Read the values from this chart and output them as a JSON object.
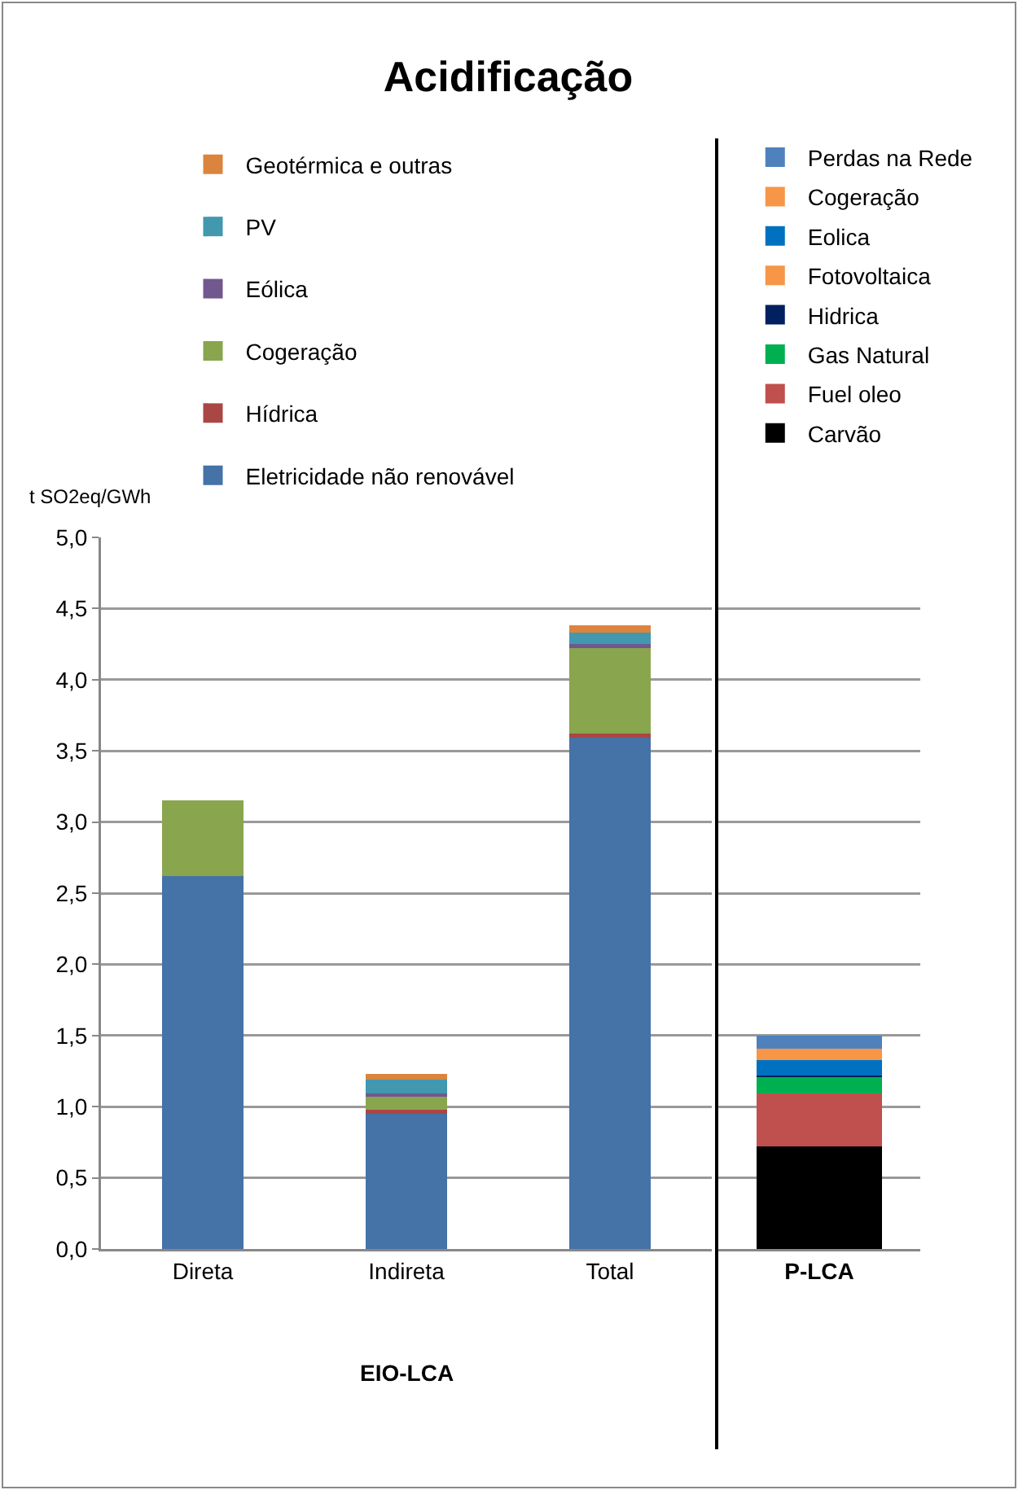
{
  "chart_data": [
    {
      "type": "bar",
      "title": "Acidificação",
      "ylabel": "t SO2eq/GWh",
      "categories": [
        "Direta",
        "Indireta",
        "Total"
      ],
      "stacked": true,
      "ylim": [
        0,
        5
      ],
      "yticks": [
        {
          "value": 0,
          "label": "0,0"
        },
        {
          "value": 0.5,
          "label": "0,5"
        },
        {
          "value": 1,
          "label": "1,0"
        },
        {
          "value": 1.5,
          "label": "1,5"
        },
        {
          "value": 2,
          "label": "2,0"
        },
        {
          "value": 2.5,
          "label": "2,5"
        },
        {
          "value": 3,
          "label": "3,0"
        },
        {
          "value": 3.5,
          "label": "3,5"
        },
        {
          "value": 4,
          "label": "4,0"
        },
        {
          "value": 4.5,
          "label": "4,5"
        },
        {
          "value": 5,
          "label": "5,0"
        }
      ],
      "grid": "y",
      "legend": "top",
      "annotations": [
        "EIO-LCA"
      ],
      "series": [
        {
          "name": "Eletricidade não renovável",
          "color": "#4572a7",
          "values": [
            2.62,
            0.95,
            3.59
          ]
        },
        {
          "name": "Hídrica",
          "color": "#aa4643",
          "values": [
            0,
            0.03,
            0.03
          ]
        },
        {
          "name": "Cogeração",
          "color": "#89a54e",
          "values": [
            0.53,
            0.09,
            0.6
          ]
        },
        {
          "name": "Eólica",
          "color": "#71588f",
          "values": [
            0,
            0.02,
            0.03
          ]
        },
        {
          "name": "PV",
          "color": "#4198af",
          "values": [
            0,
            0.1,
            0.08
          ]
        },
        {
          "name": "Geotérmica e outras",
          "color": "#db843d",
          "values": [
            0,
            0.04,
            0.05
          ]
        }
      ]
    },
    {
      "type": "bar",
      "categories": [
        "P-LCA"
      ],
      "stacked": true,
      "ylim": [
        0,
        5
      ],
      "yticks": [
        {
          "value": 0,
          "label": null
        },
        {
          "value": 0.5,
          "label": null
        },
        {
          "value": 1,
          "label": null
        },
        {
          "value": 1.5,
          "label": null
        },
        {
          "value": 2,
          "label": null
        },
        {
          "value": 2.5,
          "label": null
        },
        {
          "value": 3,
          "label": null
        },
        {
          "value": 3.5,
          "label": null
        },
        {
          "value": 4,
          "label": null
        },
        {
          "value": 4.5,
          "label": null
        },
        {
          "value": 5,
          "label": null
        }
      ],
      "tick_labels": "x",
      "grid": "y",
      "legend": "top",
      "series": [
        {
          "name": "Carvão",
          "color": "#000000",
          "values": [
            0.72
          ]
        },
        {
          "name": "Fuel oleo",
          "color": "#c0504d",
          "values": [
            0.37
          ]
        },
        {
          "name": "Gas Natural",
          "color": "#00b050",
          "values": [
            0.12
          ]
        },
        {
          "name": "Hidrica",
          "color": "#002060",
          "values": [
            0.01
          ]
        },
        {
          "name": "Fotovoltaica",
          "color": "#f79646",
          "values": [
            0
          ]
        },
        {
          "name": "Eolica",
          "color": "#0070c0",
          "values": [
            0.11
          ]
        },
        {
          "name": "Cogeração",
          "color": "#f79646",
          "values": [
            0.08
          ]
        },
        {
          "name": "Perdas na Rede",
          "color": "#4f81bd",
          "values": [
            0.09
          ]
        }
      ]
    }
  ]
}
